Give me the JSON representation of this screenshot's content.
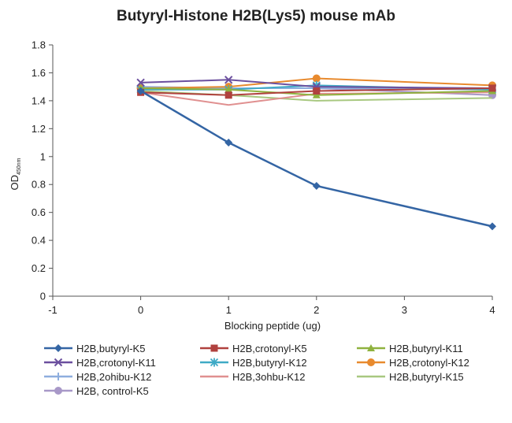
{
  "chart_data": {
    "type": "line",
    "title": "Butyryl-Histone H2B(Lys5) mouse mAb",
    "xlabel": "Blocking peptide (ug)",
    "ylabel": "OD",
    "ylabel_sub": "450nm",
    "xlim": [
      -1,
      4
    ],
    "ylim": [
      0,
      1.8
    ],
    "x_ticks": [
      -1,
      0,
      1,
      2,
      3,
      4
    ],
    "y_ticks": [
      0,
      0.2,
      0.4,
      0.6,
      0.8,
      1,
      1.2,
      1.4,
      1.6,
      1.8
    ],
    "y_tick_labels": [
      "0",
      "0.2",
      "0.4",
      "0.6",
      "0.8",
      "1",
      "1.2",
      "1.4",
      "1.6",
      "1.8"
    ],
    "grid": false,
    "legend_position": "bottom",
    "x": [
      0,
      1,
      2,
      4
    ],
    "series": [
      {
        "name": "H2B,butyryl-K5",
        "values": [
          1.47,
          1.1,
          0.79,
          0.5
        ],
        "color": "#3465a4",
        "marker": "diamond"
      },
      {
        "name": "H2B,crotonyl-K5",
        "values": [
          1.46,
          1.44,
          1.47,
          1.49
        ],
        "color": "#b0413e",
        "marker": "square"
      },
      {
        "name": "H2B,butyryl-K11",
        "values": [
          1.49,
          1.48,
          1.44,
          1.47
        ],
        "color": "#8fb23f",
        "marker": "triangle"
      },
      {
        "name": "H2B,crotonyl-K11",
        "values": [
          1.53,
          1.55,
          1.5,
          1.49
        ],
        "color": "#6b4f9e",
        "marker": "x"
      },
      {
        "name": "H2B,butyryl-K12",
        "values": [
          1.48,
          1.48,
          1.51,
          1.48
        ],
        "color": "#3faac6",
        "marker": "asterisk"
      },
      {
        "name": "H2B,crotonyl-K12",
        "values": [
          1.49,
          1.5,
          1.56,
          1.51
        ],
        "color": "#e88a2e",
        "marker": "circle"
      },
      {
        "name": "H2B,2ohibu-K12",
        "values": [
          1.5,
          1.49,
          1.49,
          1.48
        ],
        "color": "#8eaede",
        "marker": "plus"
      },
      {
        "name": "H2B,3ohbu-K12",
        "values": [
          1.46,
          1.37,
          1.45,
          1.46
        ],
        "color": "#e09090",
        "marker": "none"
      },
      {
        "name": "H2B,butyryl-K15",
        "values": [
          1.47,
          1.44,
          1.4,
          1.42
        ],
        "color": "#a8c880",
        "marker": "none"
      },
      {
        "name": "H2B, control-K5",
        "values": [
          1.49,
          1.49,
          1.49,
          1.44
        ],
        "color": "#a898c8",
        "marker": "circle"
      }
    ]
  }
}
